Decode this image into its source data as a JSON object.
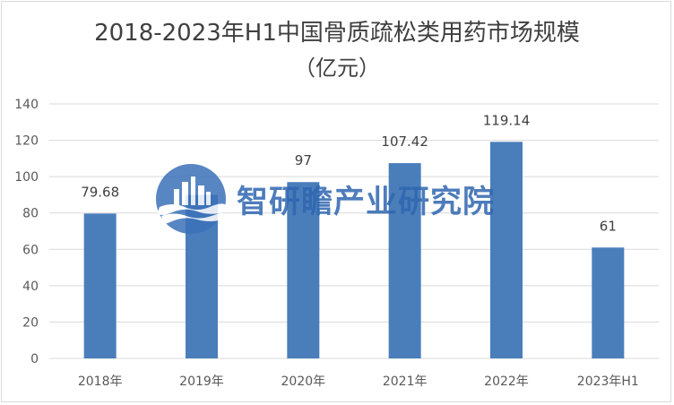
{
  "chart_data": {
    "type": "bar",
    "title_line1": "2018-2023年H1中国骨质疏松类用药市场规模",
    "title_line2": "（亿元）",
    "categories": [
      "2018年",
      "2019年",
      "2020年",
      "2021年",
      "2022年",
      "2023年H1"
    ],
    "values": [
      79.68,
      90,
      97,
      107.42,
      119.14,
      61
    ],
    "data_labels": [
      "79.68",
      "",
      "97",
      "107.42",
      "119.14",
      "61"
    ],
    "ylim": [
      0,
      140
    ],
    "yticks": [
      0,
      20,
      40,
      60,
      80,
      100,
      120,
      140
    ],
    "grid": true,
    "bar_color": "#4a7ebb"
  },
  "watermark": {
    "text": "智研瞻产业研究院",
    "logo": "city-waves-logo"
  }
}
